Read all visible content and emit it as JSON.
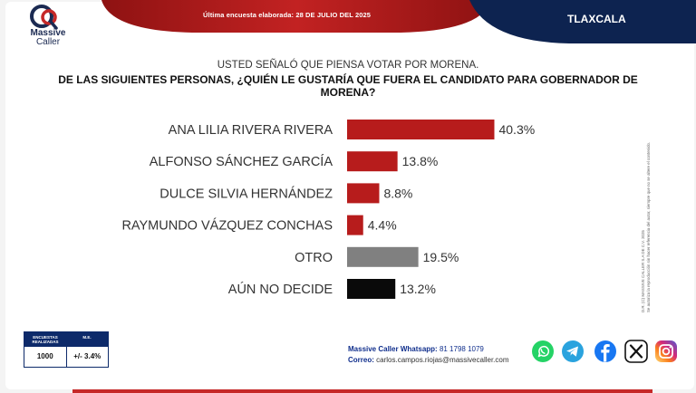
{
  "header": {
    "brand_line1": "Massive",
    "brand_line2": "Caller",
    "date_line": "Última encuesta elaborada: 28 DE JULIO DEL 2025",
    "region": "TLAXCALA",
    "colors": {
      "red": "#b71c1c",
      "navy": "#0d2350"
    }
  },
  "question": {
    "line1": "USTED SEÑALÓ QUE PIENSA VOTAR POR MORENA.",
    "line2": "DE LAS SIGUIENTES PERSONAS, ¿QUIÉN LE GUSTARÍA QUE FUERA EL CANDIDATO PARA GOBERNADOR DE MORENA?"
  },
  "chart_data": {
    "type": "bar",
    "orientation": "horizontal",
    "title": "DE LAS SIGUIENTES PERSONAS, ¿QUIÉN LE GUSTARÍA QUE FUERA EL CANDIDATO PARA GOBERNADOR DE MORENA?",
    "categories": [
      "ANA LILIA RIVERA RIVERA",
      "ALFONSO SÁNCHEZ GARCÍA",
      "DULCE SILVIA HERNÁNDEZ",
      "RAYMUNDO VÁZQUEZ CONCHAS",
      "OTRO",
      "AÚN NO DECIDE"
    ],
    "values": [
      40.3,
      13.8,
      8.8,
      4.4,
      19.5,
      13.2
    ],
    "value_labels": [
      "40.3%",
      "13.8%",
      "8.8%",
      "4.4%",
      "19.5%",
      "13.2%"
    ],
    "colors": [
      "#b71c1c",
      "#b71c1c",
      "#b71c1c",
      "#b71c1c",
      "#808080",
      "#0a0a0a"
    ],
    "xlim": [
      0,
      45
    ],
    "xlabel": "",
    "ylabel": "",
    "grid": false,
    "legend": "none"
  },
  "side_note": {
    "line1": "D.R. (C) MASSIVE CALLER S.A DE C.V. 2025",
    "line2": "Se autoriza la reproducción sin hacer referencia del autor, siempre que no se altere el contenido."
  },
  "stats": {
    "col1_header": "ENCUESTAS REALIZADAS",
    "col2_header": "M.E.",
    "col1_value": "1000",
    "col2_value": "+/- 3.4%"
  },
  "contact": {
    "whatsapp_label": "Massive Caller Whatsapp:",
    "whatsapp_number": "81 1798 1079",
    "email_label": "Correo:",
    "email": "carlos.campos.riojas@massivecaller.com"
  },
  "socials": [
    "whatsapp-icon",
    "telegram-icon",
    "facebook-icon",
    "x-icon",
    "instagram-icon"
  ]
}
